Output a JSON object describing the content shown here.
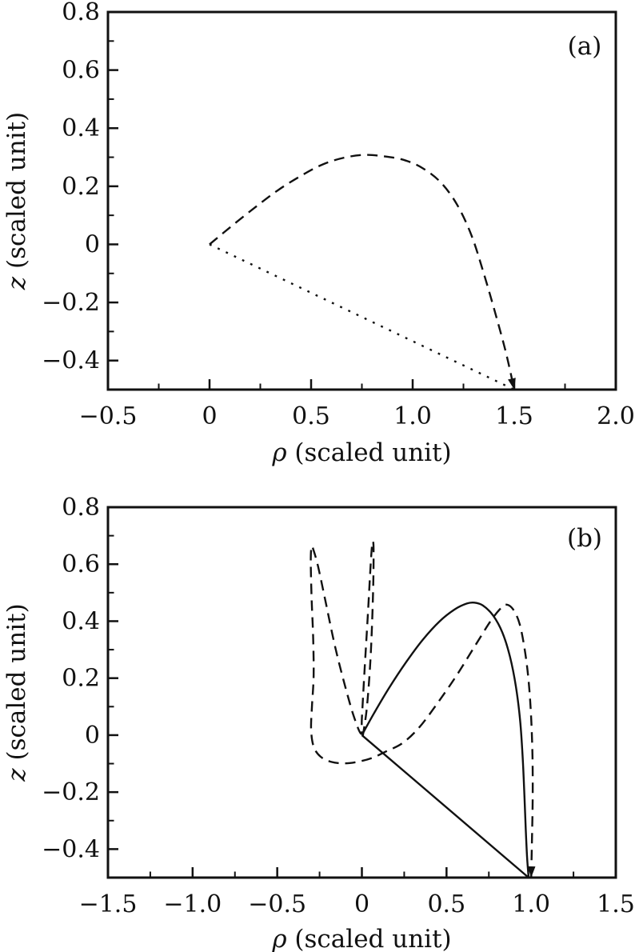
{
  "figure": {
    "background": "#ffffff",
    "ink_color": "#111111",
    "panel_labels": [
      "(a)",
      "(b)"
    ]
  },
  "chart_data": [
    {
      "type": "line",
      "panel_label": "(a)",
      "xlabel_symbol": "ρ",
      "xlabel_text": " (scaled unit)",
      "ylabel_symbol": "z",
      "ylabel_text": " (scaled unit)",
      "xlim": [
        -0.5,
        2.0
      ],
      "ylim": [
        -0.5,
        0.8
      ],
      "grid": false,
      "legend": "none",
      "x_major_ticks": [
        -0.5,
        0,
        0.5,
        1.0,
        1.5,
        2.0
      ],
      "x_tick_labels": [
        "−0.5",
        "0",
        "0.5",
        "1.0",
        "1.5",
        "2.0"
      ],
      "x_minor_ticks": [
        -0.25,
        0.25,
        0.75,
        1.25,
        1.75
      ],
      "y_major_ticks": [
        0.8,
        0.6,
        0.4,
        0.2,
        0,
        -0.2,
        -0.4
      ],
      "y_tick_labels": [
        "0.8",
        "0.6",
        "0.4",
        "0.2",
        "0",
        "−0.2",
        "−0.4"
      ],
      "y_minor_ticks": [
        0.7,
        0.5,
        0.3,
        0.1,
        -0.1,
        -0.3
      ],
      "series": [
        {
          "name": "trajectory-arc-dashed",
          "style": "dashed",
          "arrow_end": true,
          "points": [
            [
              0.0,
              0.0
            ],
            [
              0.1,
              0.058
            ],
            [
              0.22,
              0.125
            ],
            [
              0.34,
              0.188
            ],
            [
              0.46,
              0.24
            ],
            [
              0.56,
              0.276
            ],
            [
              0.66,
              0.298
            ],
            [
              0.76,
              0.308
            ],
            [
              0.86,
              0.303
            ],
            [
              0.96,
              0.29
            ],
            [
              1.05,
              0.262
            ],
            [
              1.14,
              0.212
            ],
            [
              1.22,
              0.135
            ],
            [
              1.29,
              0.03
            ],
            [
              1.35,
              -0.1
            ],
            [
              1.41,
              -0.245
            ],
            [
              1.46,
              -0.375
            ],
            [
              1.5,
              -0.5
            ]
          ]
        },
        {
          "name": "straight-return-dotted",
          "style": "dotted",
          "arrow_end": false,
          "points": [
            [
              0.0,
              0.0
            ],
            [
              1.5,
              -0.5
            ]
          ]
        }
      ]
    },
    {
      "type": "line",
      "panel_label": "(b)",
      "xlabel_symbol": "ρ",
      "xlabel_text": " (scaled unit)",
      "ylabel_symbol": "z",
      "ylabel_text": " (scaled unit)",
      "xlim": [
        -1.5,
        1.5
      ],
      "ylim": [
        -0.5,
        0.8
      ],
      "grid": false,
      "legend": "none",
      "x_major_ticks": [
        -1.5,
        -1.0,
        -0.5,
        0,
        0.5,
        1.0,
        1.5
      ],
      "x_tick_labels": [
        "−1.5",
        "−1.0",
        "−0.5",
        "0",
        "0.5",
        "1.0",
        "1.5"
      ],
      "x_minor_ticks": [
        -1.25,
        -0.75,
        -0.25,
        0.25,
        0.75,
        1.25
      ],
      "y_major_ticks": [
        0.8,
        0.6,
        0.4,
        0.2,
        0,
        -0.2,
        -0.4
      ],
      "y_tick_labels": [
        "0.8",
        "0.6",
        "0.4",
        "0.2",
        "0",
        "−0.2",
        "−0.4"
      ],
      "y_minor_ticks": [
        0.7,
        0.5,
        0.3,
        0.1,
        -0.1,
        -0.3
      ],
      "series": [
        {
          "name": "precessing-trajectory-dashed",
          "style": "dashed",
          "arrow_end": true,
          "points": [
            [
              0.005,
              -0.005
            ],
            [
              0.03,
              0.1
            ],
            [
              0.052,
              0.28
            ],
            [
              0.066,
              0.5
            ],
            [
              0.069,
              0.655
            ],
            [
              0.062,
              0.675
            ],
            [
              0.052,
              0.6
            ],
            [
              0.035,
              0.42
            ],
            [
              0.015,
              0.22
            ],
            [
              0.0,
              0.06
            ],
            [
              -0.005,
              0.005
            ],
            [
              -0.05,
              0.07
            ],
            [
              -0.105,
              0.185
            ],
            [
              -0.16,
              0.315
            ],
            [
              -0.215,
              0.47
            ],
            [
              -0.258,
              0.59
            ],
            [
              -0.285,
              0.648
            ],
            [
              -0.297,
              0.662
            ],
            [
              -0.302,
              0.61
            ],
            [
              -0.297,
              0.48
            ],
            [
              -0.288,
              0.345
            ],
            [
              -0.285,
              0.21
            ],
            [
              -0.295,
              0.1
            ],
            [
              -0.3,
              0.02
            ],
            [
              -0.285,
              -0.04
            ],
            [
              -0.245,
              -0.075
            ],
            [
              -0.18,
              -0.094
            ],
            [
              -0.1,
              -0.099
            ],
            [
              -0.02,
              -0.093
            ],
            [
              0.06,
              -0.08
            ],
            [
              0.14,
              -0.058
            ],
            [
              0.24,
              -0.028
            ],
            [
              0.34,
              0.028
            ],
            [
              0.45,
              0.115
            ],
            [
              0.56,
              0.21
            ],
            [
              0.67,
              0.315
            ],
            [
              0.76,
              0.4
            ],
            [
              0.82,
              0.445
            ],
            [
              0.855,
              0.458
            ],
            [
              0.895,
              0.44
            ],
            [
              0.932,
              0.39
            ],
            [
              0.962,
              0.3
            ],
            [
              0.985,
              0.19
            ],
            [
              1.0,
              0.06
            ],
            [
              1.008,
              -0.08
            ],
            [
              1.009,
              -0.22
            ],
            [
              1.005,
              -0.36
            ],
            [
              1.0,
              -0.5
            ]
          ]
        },
        {
          "name": "trajectory-arc-solid",
          "style": "solid",
          "arrow_end": false,
          "points": [
            [
              0.0,
              0.0
            ],
            [
              0.07,
              0.075
            ],
            [
              0.16,
              0.165
            ],
            [
              0.26,
              0.255
            ],
            [
              0.36,
              0.335
            ],
            [
              0.46,
              0.4
            ],
            [
              0.55,
              0.442
            ],
            [
              0.62,
              0.462
            ],
            [
              0.665,
              0.465
            ],
            [
              0.715,
              0.455
            ],
            [
              0.775,
              0.42
            ],
            [
              0.83,
              0.36
            ],
            [
              0.875,
              0.275
            ],
            [
              0.91,
              0.17
            ],
            [
              0.935,
              0.05
            ],
            [
              0.95,
              -0.08
            ],
            [
              0.96,
              -0.21
            ],
            [
              0.968,
              -0.33
            ],
            [
              0.976,
              -0.43
            ],
            [
              0.985,
              -0.5
            ]
          ]
        },
        {
          "name": "straight-return-solid",
          "style": "solid",
          "arrow_end": false,
          "points": [
            [
              0.0,
              0.0
            ],
            [
              0.985,
              -0.5
            ]
          ]
        }
      ]
    }
  ]
}
